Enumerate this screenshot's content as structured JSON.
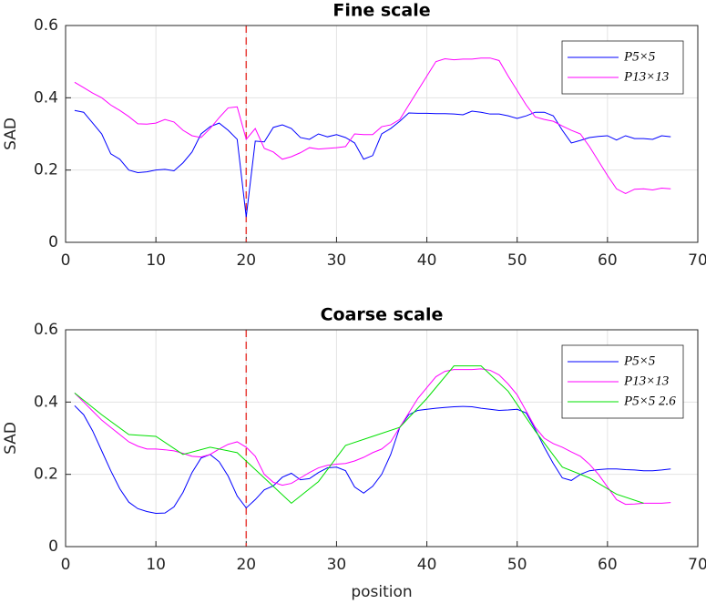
{
  "chart_data": [
    {
      "type": "line",
      "title": "Fine scale",
      "ylabel": "SAD",
      "x": [
        1,
        2,
        3,
        4,
        5,
        6,
        7,
        8,
        9,
        10,
        11,
        12,
        13,
        14,
        15,
        16,
        17,
        18,
        19,
        20,
        21,
        22,
        23,
        24,
        25,
        26,
        27,
        28,
        29,
        30,
        31,
        32,
        33,
        34,
        35,
        36,
        37,
        38,
        39,
        40,
        41,
        42,
        43,
        44,
        45,
        46,
        47,
        48,
        49,
        50,
        51,
        52,
        53,
        54,
        55,
        56,
        57,
        58,
        59,
        60,
        61,
        62,
        63,
        64,
        65,
        66,
        67
      ],
      "series": [
        {
          "name": "P5×5",
          "color": "#0000ff",
          "values": [
            0.365,
            0.36,
            0.33,
            0.3,
            0.245,
            0.23,
            0.2,
            0.193,
            0.195,
            0.2,
            0.202,
            0.198,
            0.22,
            0.25,
            0.3,
            0.32,
            0.33,
            0.31,
            0.285,
            0.07,
            0.28,
            0.278,
            0.318,
            0.325,
            0.315,
            0.29,
            0.285,
            0.3,
            0.292,
            0.298,
            0.29,
            0.275,
            0.23,
            0.24,
            0.3,
            0.315,
            0.335,
            0.358,
            0.357,
            0.357,
            0.356,
            0.356,
            0.355,
            0.353,
            0.363,
            0.36,
            0.355,
            0.355,
            0.35,
            0.343,
            0.35,
            0.36,
            0.36,
            0.35,
            0.31,
            0.275,
            0.282,
            0.29,
            0.293,
            0.295,
            0.283,
            0.295,
            0.287,
            0.287,
            0.285,
            0.295,
            0.292
          ]
        },
        {
          "name": "P13×13",
          "color": "#ff00ff",
          "values": [
            0.443,
            0.428,
            0.413,
            0.4,
            0.38,
            0.365,
            0.348,
            0.328,
            0.327,
            0.33,
            0.34,
            0.333,
            0.31,
            0.295,
            0.29,
            0.315,
            0.345,
            0.372,
            0.375,
            0.285,
            0.315,
            0.26,
            0.25,
            0.23,
            0.237,
            0.248,
            0.262,
            0.258,
            0.26,
            0.262,
            0.265,
            0.3,
            0.298,
            0.298,
            0.32,
            0.325,
            0.34,
            0.38,
            0.42,
            0.46,
            0.5,
            0.508,
            0.505,
            0.507,
            0.507,
            0.51,
            0.51,
            0.503,
            0.46,
            0.42,
            0.38,
            0.347,
            0.34,
            0.335,
            0.322,
            0.31,
            0.3,
            0.265,
            0.225,
            0.185,
            0.148,
            0.135,
            0.147,
            0.148,
            0.145,
            0.15,
            0.148
          ]
        }
      ],
      "xlim": [
        0,
        70
      ],
      "xticks": [
        0,
        10,
        20,
        30,
        40,
        50,
        60,
        70
      ],
      "ylim": [
        0,
        0.6
      ],
      "yticks": [
        0,
        0.2,
        0.4,
        0.6
      ],
      "grid": true,
      "legend": "top-right",
      "vline": 20,
      "vline_color": "#e8413c"
    },
    {
      "type": "line",
      "title": "Coarse scale",
      "ylabel": "SAD",
      "xlabel": "position",
      "x": [
        1,
        2,
        3,
        4,
        5,
        6,
        7,
        8,
        9,
        10,
        11,
        12,
        13,
        14,
        15,
        16,
        17,
        18,
        19,
        20,
        21,
        22,
        23,
        24,
        25,
        26,
        27,
        28,
        29,
        30,
        31,
        32,
        33,
        34,
        35,
        36,
        37,
        38,
        39,
        40,
        41,
        42,
        43,
        44,
        45,
        46,
        47,
        48,
        49,
        50,
        51,
        52,
        53,
        54,
        55,
        56,
        57,
        58,
        59,
        60,
        61,
        62,
        63,
        64,
        65,
        66,
        67
      ],
      "series": [
        {
          "name": "P5×5",
          "color": "#0000ff",
          "values": [
            0.39,
            0.365,
            0.32,
            0.265,
            0.21,
            0.16,
            0.123,
            0.105,
            0.097,
            0.092,
            0.093,
            0.11,
            0.15,
            0.205,
            0.245,
            0.255,
            0.235,
            0.195,
            0.14,
            0.107,
            0.13,
            0.157,
            0.168,
            0.192,
            0.203,
            0.185,
            0.188,
            0.205,
            0.218,
            0.22,
            0.21,
            0.165,
            0.148,
            0.167,
            0.2,
            0.255,
            0.33,
            0.365,
            0.377,
            0.38,
            0.383,
            0.385,
            0.387,
            0.388,
            0.387,
            0.383,
            0.38,
            0.377,
            0.378,
            0.38,
            0.37,
            0.325,
            0.275,
            0.23,
            0.19,
            0.183,
            0.2,
            0.21,
            0.213,
            0.215,
            0.215,
            0.213,
            0.212,
            0.21,
            0.21,
            0.212,
            0.215
          ]
        },
        {
          "name": "P13×13",
          "color": "#ff00ff",
          "values": [
            0.425,
            0.4,
            0.375,
            0.35,
            0.33,
            0.31,
            0.29,
            0.278,
            0.27,
            0.27,
            0.268,
            0.265,
            0.258,
            0.25,
            0.248,
            0.255,
            0.27,
            0.283,
            0.29,
            0.275,
            0.25,
            0.2,
            0.178,
            0.17,
            0.175,
            0.19,
            0.205,
            0.218,
            0.225,
            0.228,
            0.23,
            0.237,
            0.247,
            0.26,
            0.27,
            0.29,
            0.33,
            0.37,
            0.41,
            0.44,
            0.47,
            0.485,
            0.49,
            0.49,
            0.49,
            0.492,
            0.488,
            0.475,
            0.45,
            0.42,
            0.375,
            0.33,
            0.3,
            0.285,
            0.275,
            0.262,
            0.25,
            0.228,
            0.2,
            0.165,
            0.13,
            0.117,
            0.118,
            0.12,
            0.12,
            0.12,
            0.122
          ]
        },
        {
          "name": "P5×5 2.6",
          "color": "#00e000",
          "x": [
            1,
            4,
            7,
            10,
            13,
            16,
            19,
            22,
            25,
            28,
            31,
            34,
            37,
            40,
            43,
            46,
            49,
            52,
            55,
            58,
            61,
            64
          ],
          "values": [
            0.425,
            0.365,
            0.31,
            0.305,
            0.255,
            0.275,
            0.26,
            0.19,
            0.12,
            0.18,
            0.28,
            0.305,
            0.33,
            0.41,
            0.5,
            0.5,
            0.43,
            0.32,
            0.22,
            0.19,
            0.145,
            0.12
          ]
        }
      ],
      "xlim": [
        0,
        70
      ],
      "xticks": [
        0,
        10,
        20,
        30,
        40,
        50,
        60,
        70
      ],
      "ylim": [
        0,
        0.6
      ],
      "yticks": [
        0,
        0.2,
        0.4,
        0.6
      ],
      "grid": true,
      "legend": "top-right",
      "vline": 20,
      "vline_color": "#e8413c"
    }
  ]
}
